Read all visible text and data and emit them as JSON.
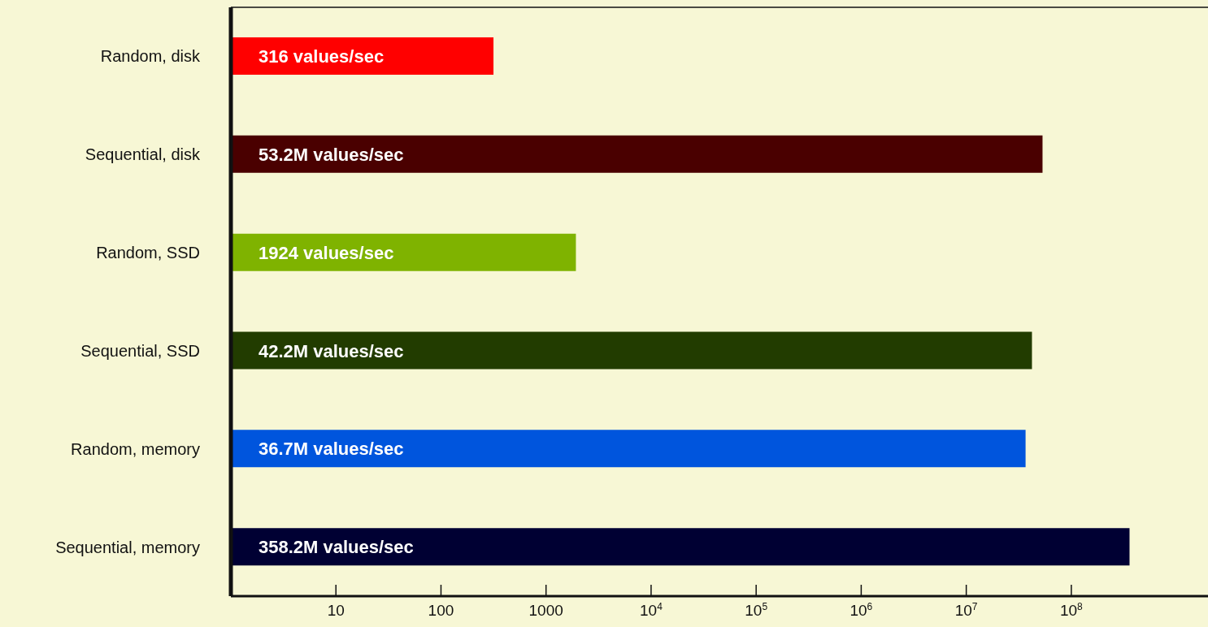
{
  "chart_data": {
    "type": "bar",
    "orientation": "horizontal",
    "log": "x",
    "categories": [
      "Random, disk",
      "Sequential, disk",
      "Random, SSD",
      "Sequential, SSD",
      "Random, memory",
      "Sequential, memory"
    ],
    "values": [
      316,
      53200000,
      1924,
      42200000,
      36700000,
      358200000
    ],
    "value_labels": [
      "316 values/sec",
      "53.2M values/sec",
      "1924 values/sec",
      "42.2M values/sec",
      "36.7M values/sec",
      "358.2M values/sec"
    ],
    "colors": [
      "#ff0000",
      "#4a0000",
      "#7fb300",
      "#223c00",
      "#0055dd",
      "#000033"
    ],
    "xlim": [
      1,
      2000000000
    ],
    "xticks": [
      10,
      100,
      1000,
      {
        "value": 10000,
        "label": "10$^{4}$"
      },
      {
        "value": 100000,
        "label": "10$^{5}$"
      },
      {
        "value": 1000000,
        "label": "10$^{6}$"
      },
      {
        "value": 10000000,
        "label": "10$^{7}$"
      },
      {
        "value": 100000000,
        "label": "10$^{8}$"
      }
    ],
    "grid": false,
    "legend": false
  }
}
